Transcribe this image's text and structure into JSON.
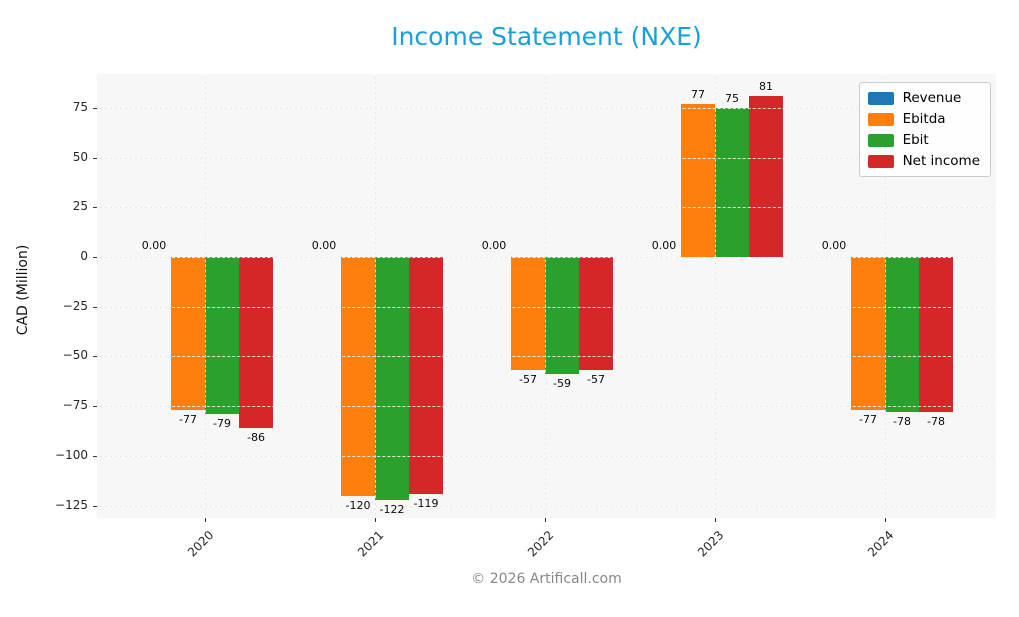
{
  "title": "Income Statement (NXE)",
  "ylabel": "CAD (Million)",
  "footer": "© 2026 Artificall.com",
  "accent_title_color": "#18a1d9",
  "chart_data": {
    "type": "bar",
    "title": "Income Statement (NXE)",
    "xlabel": "",
    "ylabel": "CAD (Million)",
    "categories": [
      "2020",
      "2021",
      "2022",
      "2023",
      "2024"
    ],
    "series": [
      {
        "name": "Revenue",
        "color": "#1f77b4",
        "values": [
          0,
          0,
          0,
          0,
          0
        ],
        "labels": [
          "0.00",
          "0.00",
          "0.00",
          "0.00",
          "0.00"
        ]
      },
      {
        "name": "Ebitda",
        "color": "#ff7f0e",
        "values": [
          -77,
          -120,
          -57,
          77,
          -77
        ],
        "labels": [
          "-77",
          "-120",
          "-57",
          "77",
          "-77"
        ]
      },
      {
        "name": "Ebit",
        "color": "#2ca02c",
        "values": [
          -79,
          -122,
          -59,
          75,
          -78
        ],
        "labels": [
          "-79",
          "-122",
          "-59",
          "75",
          "-78"
        ]
      },
      {
        "name": "Net income",
        "color": "#d62728",
        "values": [
          -86,
          -119,
          -57,
          81,
          -78
        ],
        "labels": [
          "-86",
          "-119",
          "-57",
          "81",
          "-78"
        ]
      }
    ],
    "yticks": [
      75,
      50,
      25,
      0,
      -25,
      -50,
      -75,
      -100,
      -125
    ],
    "ytick_labels": [
      "75",
      "50",
      "25",
      "0",
      "−25",
      "−50",
      "−75",
      "−100",
      "−125"
    ],
    "ylim": [
      -131.2,
      92.0
    ],
    "grid": true,
    "legend_position": "upper right"
  }
}
